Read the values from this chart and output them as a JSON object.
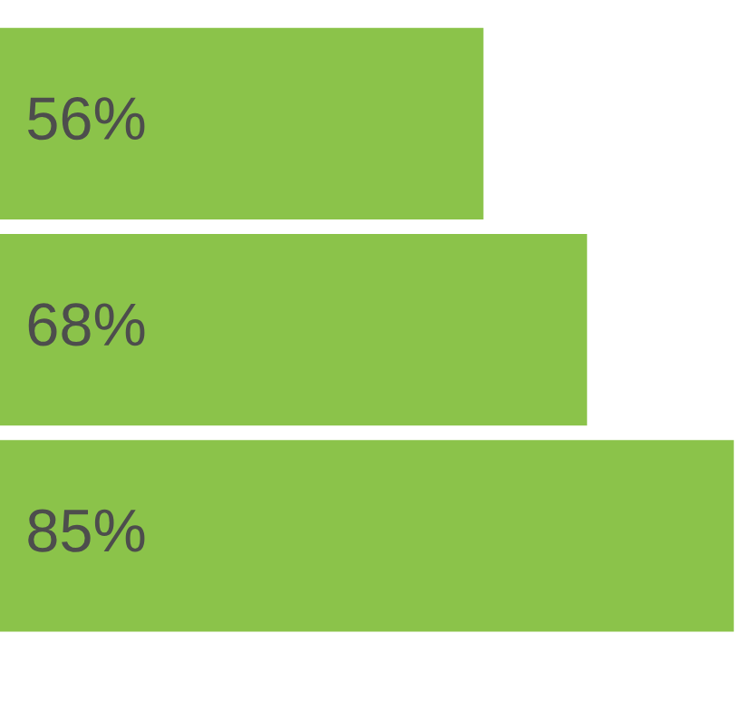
{
  "chart_data": {
    "type": "bar",
    "orientation": "horizontal",
    "categories": [
      null,
      null,
      null
    ],
    "values": [
      56,
      68,
      85
    ],
    "color": "#8bc34a",
    "value_labels": [
      "56%",
      "68%",
      "85%"
    ],
    "grid": false,
    "legend": false
  }
}
